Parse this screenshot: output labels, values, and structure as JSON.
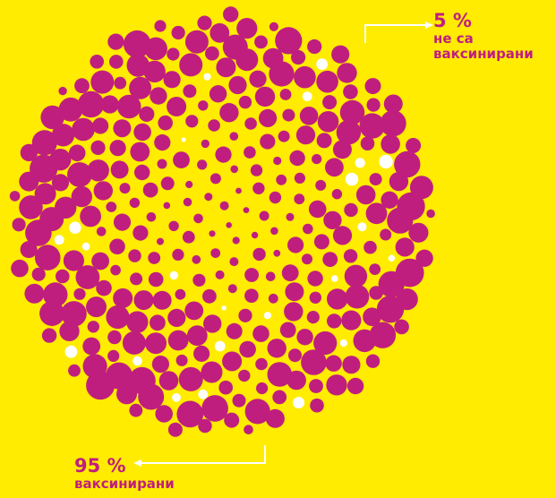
{
  "callouts": {
    "unvaccinated": {
      "value": "5 %",
      "line1": "не са",
      "line2": "ваксинирани"
    },
    "vaccinated": {
      "value": "95 %",
      "line1": "ваксинирани"
    }
  },
  "colors": {
    "background": "#ffec00",
    "vaccinated_dot": "#c01e7f",
    "unvaccinated_dot": "#ffffff",
    "arrow": "#ffffff",
    "text": "#c01e7f"
  },
  "shares": {
    "vaccinated": 0.95,
    "unvaccinated": 0.05
  }
}
